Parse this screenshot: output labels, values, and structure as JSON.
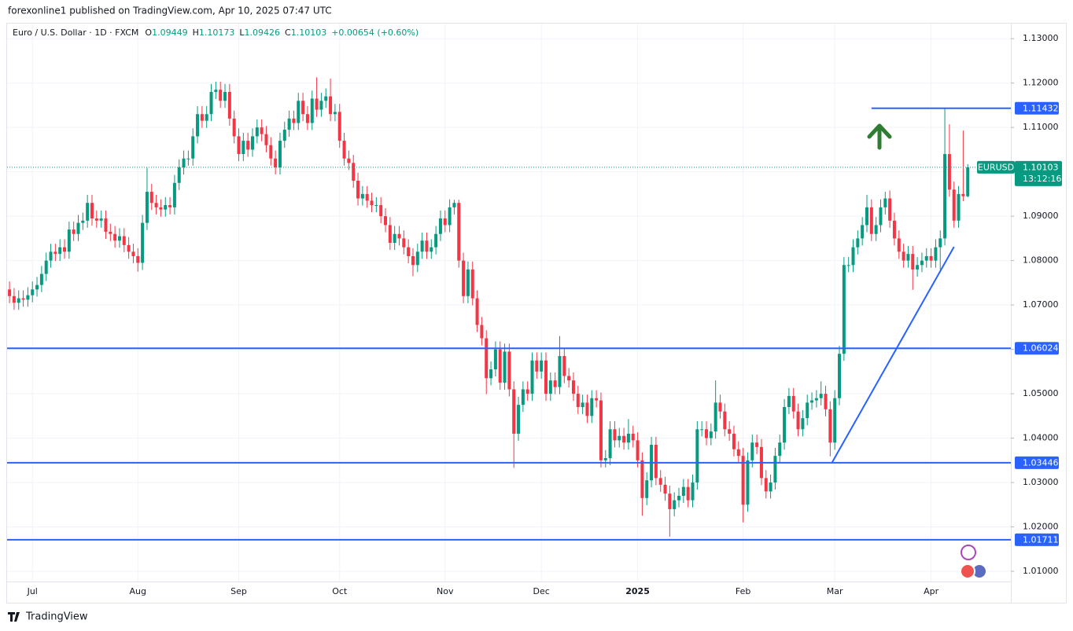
{
  "header": "forexonline1 published on TradingView.com, Apr 10, 2025 07:47 UTC",
  "footer_logo": "TradingView",
  "chart_data": {
    "type": "candlestick",
    "title": "Euro / U.S. Dollar · 1D · FXCM",
    "ohlc_labels": [
      "O",
      "H",
      "L",
      "C"
    ],
    "change": "+0.00654 (+0.60%)",
    "symbol": "EURUSD",
    "countdown": "13:12:16",
    "up_color": "#089981",
    "down_color": "#f23645",
    "level_color": "#2962ff",
    "grid": true,
    "xlim": [
      -0.7,
      218.4
    ],
    "ylim": [
      1.0077,
      1.1334
    ],
    "xticks": [
      {
        "value": 5,
        "label": "Jul"
      },
      {
        "value": 28,
        "label": "Aug"
      },
      {
        "value": 50,
        "label": "Sep"
      },
      {
        "value": 72,
        "label": "Oct"
      },
      {
        "value": 95,
        "label": "Nov"
      },
      {
        "value": 116,
        "label": "Dec"
      },
      {
        "value": 137,
        "label": "2025"
      },
      {
        "value": 160,
        "label": "Feb"
      },
      {
        "value": 180,
        "label": "Mar"
      },
      {
        "value": 201,
        "label": "Apr"
      }
    ],
    "yticks": [
      {
        "value": 1.01,
        "label": "1.01000"
      },
      {
        "value": 1.02,
        "label": "1.02000"
      },
      {
        "value": 1.03,
        "label": "1.03000"
      },
      {
        "value": 1.04,
        "label": "1.04000"
      },
      {
        "value": 1.05,
        "label": "1.05000"
      },
      {
        "value": 1.06,
        "label": "1.06000"
      },
      {
        "value": 1.07,
        "label": "1.07000"
      },
      {
        "value": 1.08,
        "label": "1.08000"
      },
      {
        "value": 1.09,
        "label": "1.09000"
      },
      {
        "value": 1.1,
        "label": "1.10000"
      },
      {
        "value": 1.11,
        "label": "1.11000"
      },
      {
        "value": 1.12,
        "label": "1.12000"
      },
      {
        "value": 1.13,
        "label": "1.13000"
      }
    ],
    "levels": [
      1.06024,
      1.03446,
      1.01711
    ],
    "resistance": {
      "value": 1.11432,
      "from": 188
    },
    "trendline": [
      [
        179.4,
        1.0345
      ],
      [
        206,
        1.0831
      ]
    ],
    "candles": [
      [
        1.0735,
        1.0753,
        1.0704,
        1.072
      ],
      [
        1.072,
        1.0738,
        1.0689,
        1.0705
      ],
      [
        1.0705,
        1.0733,
        1.0689,
        1.0715
      ],
      [
        1.0715,
        1.0733,
        1.0696,
        1.0712
      ],
      [
        1.0712,
        1.074,
        1.0696,
        1.0722
      ],
      [
        1.0722,
        1.0753,
        1.0706,
        1.0735
      ],
      [
        1.0735,
        1.0763,
        1.0719,
        1.0745
      ],
      [
        1.0745,
        1.0788,
        1.0729,
        1.077
      ],
      [
        1.077,
        1.0818,
        1.0754,
        1.08
      ],
      [
        1.08,
        1.0838,
        1.0784,
        1.082
      ],
      [
        1.082,
        1.0838,
        1.0799,
        1.0815
      ],
      [
        1.0815,
        1.0848,
        1.0799,
        1.083
      ],
      [
        1.083,
        1.0848,
        1.0804,
        1.082
      ],
      [
        1.082,
        1.0888,
        1.0804,
        1.087
      ],
      [
        1.087,
        1.0888,
        1.0844,
        1.086
      ],
      [
        1.086,
        1.0903,
        1.0844,
        1.0885
      ],
      [
        1.0885,
        1.0908,
        1.0869,
        1.089
      ],
      [
        1.089,
        1.0948,
        1.0874,
        1.093
      ],
      [
        1.093,
        1.0948,
        1.0879,
        1.0895
      ],
      [
        1.0895,
        1.0913,
        1.0874,
        1.089
      ],
      [
        1.089,
        1.0913,
        1.0874,
        1.0895
      ],
      [
        1.0895,
        1.0913,
        1.0849,
        1.0865
      ],
      [
        1.0865,
        1.0883,
        1.0844,
        1.086
      ],
      [
        1.086,
        1.0878,
        1.0829,
        1.0845
      ],
      [
        1.0845,
        1.0873,
        1.0829,
        1.0855
      ],
      [
        1.0855,
        1.0873,
        1.0819,
        1.0835
      ],
      [
        1.0835,
        1.0853,
        1.0804,
        1.082
      ],
      [
        1.082,
        1.0838,
        1.0794,
        1.081
      ],
      [
        1.081,
        1.0828,
        1.0775,
        1.0795
      ],
      [
        1.0795,
        1.0903,
        1.0779,
        1.0885
      ],
      [
        1.0885,
        1.1009,
        1.0869,
        1.0955
      ],
      [
        1.0955,
        1.0973,
        1.0914,
        1.093
      ],
      [
        1.093,
        1.0948,
        1.0904,
        1.092
      ],
      [
        1.092,
        1.0938,
        1.0899,
        1.0915
      ],
      [
        1.0915,
        1.0943,
        1.0899,
        1.0925
      ],
      [
        1.0925,
        1.0943,
        1.0904,
        1.092
      ],
      [
        1.092,
        1.0993,
        1.0904,
        1.0975
      ],
      [
        1.0975,
        1.1028,
        1.0959,
        1.101
      ],
      [
        1.101,
        1.1048,
        1.0994,
        1.103
      ],
      [
        1.103,
        1.1048,
        1.1014,
        1.103
      ],
      [
        1.103,
        1.1098,
        1.1014,
        1.108
      ],
      [
        1.108,
        1.1148,
        1.1064,
        1.113
      ],
      [
        1.113,
        1.1148,
        1.1099,
        1.1115
      ],
      [
        1.1115,
        1.1148,
        1.1099,
        1.113
      ],
      [
        1.113,
        1.1198,
        1.1114,
        1.118
      ],
      [
        1.118,
        1.1203,
        1.1164,
        1.1185
      ],
      [
        1.1185,
        1.1203,
        1.1144,
        1.116
      ],
      [
        1.116,
        1.1198,
        1.1144,
        1.118
      ],
      [
        1.118,
        1.1198,
        1.1104,
        1.112
      ],
      [
        1.112,
        1.1138,
        1.1064,
        1.108
      ],
      [
        1.108,
        1.1098,
        1.1024,
        1.104
      ],
      [
        1.104,
        1.1088,
        1.1024,
        1.107
      ],
      [
        1.107,
        1.1088,
        1.1034,
        1.105
      ],
      [
        1.105,
        1.1098,
        1.1034,
        1.108
      ],
      [
        1.108,
        1.1118,
        1.1064,
        1.11
      ],
      [
        1.11,
        1.1118,
        1.1069,
        1.1085
      ],
      [
        1.1085,
        1.1103,
        1.1044,
        1.106
      ],
      [
        1.106,
        1.1078,
        1.1014,
        1.103
      ],
      [
        1.103,
        1.1048,
        1.0994,
        1.101
      ],
      [
        1.101,
        1.1088,
        1.0994,
        1.107
      ],
      [
        1.107,
        1.1113,
        1.1054,
        1.1095
      ],
      [
        1.1095,
        1.1138,
        1.1079,
        1.112
      ],
      [
        1.112,
        1.1138,
        1.1094,
        1.111
      ],
      [
        1.111,
        1.1178,
        1.1094,
        1.116
      ],
      [
        1.116,
        1.1178,
        1.1114,
        1.113
      ],
      [
        1.113,
        1.1148,
        1.1094,
        1.111
      ],
      [
        1.111,
        1.1183,
        1.1094,
        1.1165
      ],
      [
        1.1165,
        1.1213,
        1.1124,
        1.114
      ],
      [
        1.114,
        1.1178,
        1.1124,
        1.116
      ],
      [
        1.116,
        1.1188,
        1.1144,
        1.117
      ],
      [
        1.117,
        1.121,
        1.1114,
        1.113
      ],
      [
        1.113,
        1.1153,
        1.1114,
        1.1135
      ],
      [
        1.1135,
        1.1153,
        1.1054,
        1.107
      ],
      [
        1.107,
        1.1088,
        1.1014,
        1.103
      ],
      [
        1.103,
        1.1048,
        1.1004,
        1.102
      ],
      [
        1.102,
        1.1038,
        1.0964,
        1.098
      ],
      [
        1.098,
        1.0998,
        1.0924,
        1.094
      ],
      [
        1.094,
        1.0968,
        1.0924,
        1.095
      ],
      [
        1.095,
        1.0968,
        1.0919,
        1.0935
      ],
      [
        1.0935,
        1.0953,
        1.0909,
        1.0925
      ],
      [
        1.0925,
        1.0943,
        1.0909,
        1.0925
      ],
      [
        1.0925,
        1.0943,
        1.0884,
        1.09
      ],
      [
        1.09,
        1.0918,
        1.0864,
        1.088
      ],
      [
        1.088,
        1.0898,
        1.0824,
        1.084
      ],
      [
        1.084,
        1.0878,
        1.0824,
        1.086
      ],
      [
        1.086,
        1.0878,
        1.0834,
        1.085
      ],
      [
        1.085,
        1.0868,
        1.0814,
        1.083
      ],
      [
        1.083,
        1.0848,
        1.0794,
        1.081
      ],
      [
        1.081,
        1.0828,
        1.0765,
        1.079
      ],
      [
        1.079,
        1.0838,
        1.0774,
        1.082
      ],
      [
        1.082,
        1.0863,
        1.0804,
        1.0845
      ],
      [
        1.0845,
        1.0863,
        1.0804,
        1.082
      ],
      [
        1.082,
        1.0848,
        1.0804,
        1.083
      ],
      [
        1.083,
        1.0878,
        1.0814,
        1.086
      ],
      [
        1.086,
        1.0913,
        1.0844,
        1.0895
      ],
      [
        1.0895,
        1.0913,
        1.0864,
        1.088
      ],
      [
        1.088,
        1.0938,
        1.0864,
        1.092
      ],
      [
        1.092,
        1.0937,
        1.0904,
        1.093
      ],
      [
        1.093,
        1.0937,
        1.0784,
        1.08
      ],
      [
        1.08,
        1.0818,
        1.0704,
        1.072
      ],
      [
        1.072,
        1.0798,
        1.0704,
        1.078
      ],
      [
        1.078,
        1.0798,
        1.0699,
        1.0715
      ],
      [
        1.0715,
        1.0733,
        1.0639,
        1.0655
      ],
      [
        1.0655,
        1.0673,
        1.0609,
        1.0625
      ],
      [
        1.0625,
        1.0643,
        1.0499,
        1.0535
      ],
      [
        1.0535,
        1.0573,
        1.0519,
        1.0555
      ],
      [
        1.0555,
        1.0618,
        1.0539,
        1.06
      ],
      [
        1.06,
        1.0618,
        1.0509,
        1.0525
      ],
      [
        1.0525,
        1.0613,
        1.0509,
        1.0595
      ],
      [
        1.0595,
        1.0613,
        1.0494,
        1.051
      ],
      [
        1.051,
        1.0528,
        1.0333,
        1.041
      ],
      [
        1.041,
        1.0493,
        1.0394,
        1.0475
      ],
      [
        1.0475,
        1.0528,
        1.0459,
        1.051
      ],
      [
        1.051,
        1.0528,
        1.0484,
        1.05
      ],
      [
        1.05,
        1.0593,
        1.0484,
        1.0575
      ],
      [
        1.0575,
        1.0593,
        1.0534,
        1.055
      ],
      [
        1.055,
        1.0593,
        1.0534,
        1.0575
      ],
      [
        1.0575,
        1.0593,
        1.0484,
        1.05
      ],
      [
        1.05,
        1.0548,
        1.0484,
        1.053
      ],
      [
        1.053,
        1.0548,
        1.0499,
        1.0515
      ],
      [
        1.0515,
        1.063,
        1.0499,
        1.0585
      ],
      [
        1.0585,
        1.0603,
        1.0524,
        1.054
      ],
      [
        1.054,
        1.0558,
        1.0514,
        1.053
      ],
      [
        1.053,
        1.0548,
        1.0484,
        1.05
      ],
      [
        1.05,
        1.0518,
        1.0454,
        1.047
      ],
      [
        1.047,
        1.0498,
        1.0454,
        1.048
      ],
      [
        1.048,
        1.0498,
        1.0434,
        1.045
      ],
      [
        1.045,
        1.0508,
        1.0434,
        1.049
      ],
      [
        1.049,
        1.0508,
        1.0469,
        1.0485
      ],
      [
        1.0485,
        1.0503,
        1.0334,
        1.035
      ],
      [
        1.035,
        1.0373,
        1.0334,
        1.0355
      ],
      [
        1.0355,
        1.0438,
        1.0339,
        1.042
      ],
      [
        1.042,
        1.0438,
        1.0379,
        1.0395
      ],
      [
        1.0395,
        1.0423,
        1.0379,
        1.0405
      ],
      [
        1.0405,
        1.0423,
        1.0374,
        1.039
      ],
      [
        1.039,
        1.0443,
        1.0374,
        1.041
      ],
      [
        1.041,
        1.0428,
        1.0379,
        1.0395
      ],
      [
        1.0395,
        1.0413,
        1.0334,
        1.035
      ],
      [
        1.035,
        1.0368,
        1.0225,
        1.0265
      ],
      [
        1.0265,
        1.0323,
        1.0249,
        1.0305
      ],
      [
        1.0305,
        1.0403,
        1.0289,
        1.0385
      ],
      [
        1.0385,
        1.0403,
        1.0294,
        1.031
      ],
      [
        1.031,
        1.0328,
        1.0279,
        1.0295
      ],
      [
        1.0295,
        1.0313,
        1.0259,
        1.0275
      ],
      [
        1.0275,
        1.0293,
        1.0178,
        1.024
      ],
      [
        1.024,
        1.0278,
        1.0224,
        1.026
      ],
      [
        1.026,
        1.0288,
        1.0244,
        1.027
      ],
      [
        1.027,
        1.0308,
        1.0254,
        1.029
      ],
      [
        1.029,
        1.0308,
        1.0244,
        1.026
      ],
      [
        1.026,
        1.0318,
        1.0244,
        1.03
      ],
      [
        1.03,
        1.0438,
        1.0284,
        1.042
      ],
      [
        1.042,
        1.0438,
        1.0404,
        1.042
      ],
      [
        1.042,
        1.0438,
        1.0384,
        1.04
      ],
      [
        1.04,
        1.0433,
        1.0384,
        1.0415
      ],
      [
        1.0415,
        1.053,
        1.0399,
        1.048
      ],
      [
        1.048,
        1.0498,
        1.0444,
        1.046
      ],
      [
        1.046,
        1.0478,
        1.0404,
        1.042
      ],
      [
        1.042,
        1.0438,
        1.0394,
        1.041
      ],
      [
        1.041,
        1.0428,
        1.0359,
        1.0375
      ],
      [
        1.0375,
        1.0393,
        1.0344,
        1.036
      ],
      [
        1.036,
        1.0378,
        1.021,
        1.025
      ],
      [
        1.025,
        1.0368,
        1.0234,
        1.035
      ],
      [
        1.035,
        1.0408,
        1.0334,
        1.039
      ],
      [
        1.039,
        1.0408,
        1.0364,
        1.038
      ],
      [
        1.038,
        1.0398,
        1.0294,
        1.031
      ],
      [
        1.031,
        1.0328,
        1.0264,
        1.028
      ],
      [
        1.028,
        1.0318,
        1.0264,
        1.03
      ],
      [
        1.03,
        1.0378,
        1.0284,
        1.036
      ],
      [
        1.036,
        1.0408,
        1.0344,
        1.039
      ],
      [
        1.039,
        1.0488,
        1.0374,
        1.047
      ],
      [
        1.047,
        1.0513,
        1.0454,
        1.0495
      ],
      [
        1.0495,
        1.0513,
        1.0444,
        1.046
      ],
      [
        1.046,
        1.0478,
        1.0404,
        1.042
      ],
      [
        1.042,
        1.0463,
        1.0404,
        1.0445
      ],
      [
        1.0445,
        1.0498,
        1.0429,
        1.048
      ],
      [
        1.048,
        1.0503,
        1.0464,
        1.0485
      ],
      [
        1.0485,
        1.0508,
        1.0469,
        1.049
      ],
      [
        1.049,
        1.0528,
        1.0474,
        1.05
      ],
      [
        1.05,
        1.0518,
        1.0449,
        1.0465
      ],
      [
        1.0465,
        1.0483,
        1.0359,
        1.039
      ],
      [
        1.039,
        1.0508,
        1.0374,
        1.049
      ],
      [
        1.049,
        1.0608,
        1.0474,
        1.059
      ],
      [
        1.059,
        1.0808,
        1.0574,
        1.079
      ],
      [
        1.079,
        1.0808,
        1.0774,
        1.079
      ],
      [
        1.079,
        1.0848,
        1.0774,
        1.083
      ],
      [
        1.083,
        1.0868,
        1.0814,
        1.085
      ],
      [
        1.085,
        1.0898,
        1.0834,
        1.088
      ],
      [
        1.088,
        1.0948,
        1.0864,
        1.092
      ],
      [
        1.092,
        1.0938,
        1.0844,
        1.086
      ],
      [
        1.086,
        1.0898,
        1.0844,
        1.088
      ],
      [
        1.088,
        1.0938,
        1.0864,
        1.092
      ],
      [
        1.092,
        1.0955,
        1.0904,
        1.094
      ],
      [
        1.094,
        1.0958,
        1.0874,
        1.089
      ],
      [
        1.089,
        1.0908,
        1.0834,
        1.085
      ],
      [
        1.085,
        1.0868,
        1.0804,
        1.082
      ],
      [
        1.082,
        1.0838,
        1.0784,
        1.08
      ],
      [
        1.08,
        1.0833,
        1.0784,
        1.0815
      ],
      [
        1.0815,
        1.0833,
        1.0734,
        1.078
      ],
      [
        1.078,
        1.0808,
        1.0764,
        1.079
      ],
      [
        1.079,
        1.0818,
        1.0774,
        1.08
      ],
      [
        1.08,
        1.0828,
        1.0784,
        1.081
      ],
      [
        1.081,
        1.0828,
        1.0784,
        1.08
      ],
      [
        1.08,
        1.0848,
        1.0784,
        1.083
      ],
      [
        1.083,
        1.0868,
        1.078,
        1.085
      ],
      [
        1.085,
        1.1143,
        1.0834,
        1.104
      ],
      [
        1.104,
        1.1107,
        1.0944,
        1.096
      ],
      [
        1.096,
        1.0978,
        1.0874,
        1.089
      ],
      [
        1.089,
        1.0968,
        1.0874,
        1.095
      ],
      [
        1.095,
        1.1093,
        1.0934,
        1.0945
      ],
      [
        1.09449,
        1.10173,
        1.09426,
        1.10103
      ]
    ]
  }
}
